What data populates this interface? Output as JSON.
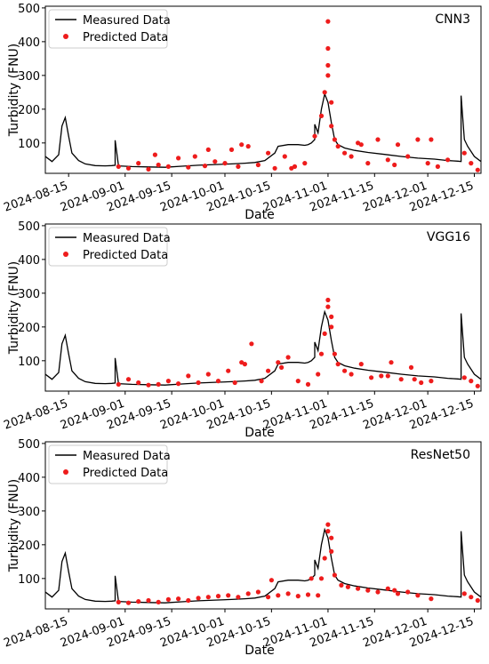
{
  "chart_data": [
    {
      "type": "line",
      "title": "CNN3",
      "xlabel": "Date",
      "ylabel": "Turbidity (FNU)",
      "ylim": [
        10,
        505
      ],
      "yticks": [
        100,
        200,
        300,
        400,
        500
      ],
      "xlim": [
        "2024-08-08",
        "2024-12-17"
      ],
      "xticks": [
        "2024-08-15",
        "2024-09-01",
        "2024-09-15",
        "2024-10-01",
        "2024-10-15",
        "2024-11-01",
        "2024-11-15",
        "2024-12-01",
        "2024-12-15"
      ],
      "legend": {
        "position": "top-left",
        "entries": [
          "Measured Data",
          "Predicted Data"
        ]
      },
      "series": [
        {
          "name": "Measured Data",
          "kind": "line",
          "color": "#000000",
          "x": [
            "2024-08-08",
            "2024-08-10",
            "2024-08-12",
            "2024-08-13",
            "2024-08-14",
            "2024-08-15",
            "2024-08-16",
            "2024-08-18",
            "2024-08-20",
            "2024-08-23",
            "2024-08-26",
            "2024-08-28",
            "2024-08-29",
            "2024-08-29",
            "2024-08-30",
            "2024-09-03",
            "2024-09-08",
            "2024-09-13",
            "2024-09-18",
            "2024-09-23",
            "2024-09-28",
            "2024-10-03",
            "2024-10-07",
            "2024-10-10",
            "2024-10-13",
            "2024-10-16",
            "2024-10-17",
            "2024-10-20",
            "2024-10-23",
            "2024-10-25",
            "2024-10-26",
            "2024-10-27",
            "2024-10-28",
            "2024-10-28",
            "2024-10-29",
            "2024-10-30",
            "2024-10-31",
            "2024-11-01",
            "2024-11-02",
            "2024-11-03",
            "2024-11-04",
            "2024-11-06",
            "2024-11-09",
            "2024-11-13",
            "2024-11-18",
            "2024-11-23",
            "2024-11-28",
            "2024-12-03",
            "2024-12-07",
            "2024-12-10",
            "2024-12-11",
            "2024-12-11",
            "2024-12-12",
            "2024-12-13",
            "2024-12-15",
            "2024-12-17"
          ],
          "y": [
            60,
            45,
            65,
            150,
            175,
            120,
            70,
            48,
            38,
            33,
            32,
            33,
            34,
            108,
            32,
            30,
            29,
            28,
            31,
            34,
            36,
            38,
            40,
            42,
            48,
            70,
            90,
            95,
            95,
            93,
            95,
            100,
            110,
            155,
            130,
            200,
            245,
            220,
            160,
            110,
            95,
            85,
            78,
            72,
            66,
            60,
            55,
            52,
            48,
            46,
            45,
            240,
            110,
            90,
            60,
            45
          ]
        },
        {
          "name": "Predicted Data",
          "kind": "scatter",
          "color": "#ee1c1c",
          "x": [
            "2024-08-30",
            "2024-09-02",
            "2024-09-05",
            "2024-09-08",
            "2024-09-11",
            "2024-09-14",
            "2024-09-17",
            "2024-09-20",
            "2024-09-22",
            "2024-09-25",
            "2024-09-28",
            "2024-10-01",
            "2024-10-03",
            "2024-10-05",
            "2024-10-08",
            "2024-10-11",
            "2024-10-14",
            "2024-10-16",
            "2024-10-19",
            "2024-10-22",
            "2024-10-25",
            "2024-10-28",
            "2024-10-30",
            "2024-10-31",
            "2024-11-01",
            "2024-11-01",
            "2024-11-01",
            "2024-11-01",
            "2024-11-02",
            "2024-11-02",
            "2024-11-03",
            "2024-11-04",
            "2024-11-06",
            "2024-11-08",
            "2024-11-10",
            "2024-11-13",
            "2024-11-16",
            "2024-11-19",
            "2024-11-22",
            "2024-11-25",
            "2024-11-28",
            "2024-12-01",
            "2024-12-04",
            "2024-12-07",
            "2024-12-12",
            "2024-12-14",
            "2024-12-16",
            "2024-09-10",
            "2024-09-26",
            "2024-10-06",
            "2024-10-21",
            "2024-11-11",
            "2024-11-21",
            "2024-12-02"
          ],
          "y": [
            30,
            25,
            40,
            22,
            35,
            30,
            55,
            28,
            60,
            32,
            45,
            40,
            80,
            30,
            90,
            35,
            70,
            25,
            60,
            30,
            40,
            120,
            180,
            250,
            460,
            380,
            330,
            300,
            220,
            150,
            110,
            90,
            70,
            60,
            100,
            40,
            110,
            50,
            95,
            60,
            110,
            40,
            30,
            50,
            70,
            40,
            20,
            65,
            80,
            95,
            25,
            95,
            35,
            110
          ]
        }
      ]
    },
    {
      "type": "line",
      "title": "VGG16",
      "xlabel": "Date",
      "ylabel": "Turbidity (FNU)",
      "ylim": [
        10,
        505
      ],
      "yticks": [
        100,
        200,
        300,
        400,
        500
      ],
      "xlim": [
        "2024-08-08",
        "2024-12-17"
      ],
      "xticks": [
        "2024-08-15",
        "2024-09-01",
        "2024-09-15",
        "2024-10-01",
        "2024-10-15",
        "2024-11-01",
        "2024-11-15",
        "2024-12-01",
        "2024-12-15"
      ],
      "legend": {
        "position": "top-left",
        "entries": [
          "Measured Data",
          "Predicted Data"
        ]
      },
      "series": [
        {
          "name": "Measured Data",
          "kind": "line",
          "color": "#000000",
          "x": [
            "2024-08-08",
            "2024-08-10",
            "2024-08-12",
            "2024-08-13",
            "2024-08-14",
            "2024-08-15",
            "2024-08-16",
            "2024-08-18",
            "2024-08-20",
            "2024-08-23",
            "2024-08-26",
            "2024-08-28",
            "2024-08-29",
            "2024-08-29",
            "2024-08-30",
            "2024-09-03",
            "2024-09-08",
            "2024-09-13",
            "2024-09-18",
            "2024-09-23",
            "2024-09-28",
            "2024-10-03",
            "2024-10-07",
            "2024-10-10",
            "2024-10-13",
            "2024-10-16",
            "2024-10-17",
            "2024-10-20",
            "2024-10-23",
            "2024-10-25",
            "2024-10-26",
            "2024-10-27",
            "2024-10-28",
            "2024-10-28",
            "2024-10-29",
            "2024-10-30",
            "2024-10-31",
            "2024-11-01",
            "2024-11-02",
            "2024-11-03",
            "2024-11-04",
            "2024-11-06",
            "2024-11-09",
            "2024-11-13",
            "2024-11-18",
            "2024-11-23",
            "2024-11-28",
            "2024-12-03",
            "2024-12-07",
            "2024-12-10",
            "2024-12-11",
            "2024-12-11",
            "2024-12-12",
            "2024-12-13",
            "2024-12-15",
            "2024-12-17"
          ],
          "y": [
            60,
            45,
            65,
            150,
            175,
            120,
            70,
            48,
            38,
            33,
            32,
            33,
            34,
            108,
            32,
            30,
            29,
            28,
            31,
            34,
            36,
            38,
            40,
            42,
            48,
            70,
            90,
            95,
            95,
            93,
            95,
            100,
            110,
            155,
            130,
            200,
            245,
            220,
            160,
            110,
            95,
            85,
            78,
            72,
            66,
            60,
            55,
            52,
            48,
            46,
            45,
            240,
            110,
            90,
            60,
            45
          ]
        },
        {
          "name": "Predicted Data",
          "kind": "scatter",
          "color": "#ee1c1c",
          "x": [
            "2024-08-30",
            "2024-09-02",
            "2024-09-05",
            "2024-09-08",
            "2024-09-11",
            "2024-09-14",
            "2024-09-17",
            "2024-09-20",
            "2024-09-23",
            "2024-09-26",
            "2024-09-29",
            "2024-10-02",
            "2024-10-04",
            "2024-10-06",
            "2024-10-09",
            "2024-10-12",
            "2024-10-14",
            "2024-10-17",
            "2024-10-20",
            "2024-10-23",
            "2024-10-26",
            "2024-10-29",
            "2024-10-30",
            "2024-10-31",
            "2024-11-01",
            "2024-11-01",
            "2024-11-02",
            "2024-11-02",
            "2024-11-03",
            "2024-11-04",
            "2024-11-06",
            "2024-11-08",
            "2024-11-11",
            "2024-11-14",
            "2024-11-17",
            "2024-11-20",
            "2024-11-23",
            "2024-11-26",
            "2024-11-29",
            "2024-12-02",
            "2024-12-12",
            "2024-12-14",
            "2024-12-16",
            "2024-10-07",
            "2024-10-18",
            "2024-11-19",
            "2024-11-27"
          ],
          "y": [
            30,
            45,
            35,
            28,
            30,
            40,
            32,
            55,
            35,
            60,
            40,
            70,
            35,
            95,
            150,
            40,
            70,
            95,
            110,
            40,
            30,
            60,
            120,
            180,
            280,
            260,
            230,
            200,
            120,
            90,
            70,
            60,
            90,
            50,
            55,
            95,
            45,
            80,
            35,
            40,
            50,
            40,
            25,
            90,
            80,
            55,
            45
          ]
        }
      ]
    },
    {
      "type": "line",
      "title": "ResNet50",
      "xlabel": "Date",
      "ylabel": "Turbidity (FNU)",
      "ylim": [
        10,
        505
      ],
      "yticks": [
        100,
        200,
        300,
        400,
        500
      ],
      "xlim": [
        "2024-08-08",
        "2024-12-17"
      ],
      "xticks": [
        "2024-08-15",
        "2024-09-01",
        "2024-09-15",
        "2024-10-01",
        "2024-10-15",
        "2024-11-01",
        "2024-11-15",
        "2024-12-01",
        "2024-12-15"
      ],
      "legend": {
        "position": "top-left",
        "entries": [
          "Measured Data",
          "Predicted Data"
        ]
      },
      "series": [
        {
          "name": "Measured Data",
          "kind": "line",
          "color": "#000000",
          "x": [
            "2024-08-08",
            "2024-08-10",
            "2024-08-12",
            "2024-08-13",
            "2024-08-14",
            "2024-08-15",
            "2024-08-16",
            "2024-08-18",
            "2024-08-20",
            "2024-08-23",
            "2024-08-26",
            "2024-08-28",
            "2024-08-29",
            "2024-08-29",
            "2024-08-30",
            "2024-09-03",
            "2024-09-08",
            "2024-09-13",
            "2024-09-18",
            "2024-09-23",
            "2024-09-28",
            "2024-10-03",
            "2024-10-07",
            "2024-10-10",
            "2024-10-13",
            "2024-10-16",
            "2024-10-17",
            "2024-10-20",
            "2024-10-23",
            "2024-10-25",
            "2024-10-26",
            "2024-10-27",
            "2024-10-28",
            "2024-10-28",
            "2024-10-29",
            "2024-10-30",
            "2024-10-31",
            "2024-11-01",
            "2024-11-02",
            "2024-11-03",
            "2024-11-04",
            "2024-11-06",
            "2024-11-09",
            "2024-11-13",
            "2024-11-18",
            "2024-11-23",
            "2024-11-28",
            "2024-12-03",
            "2024-12-07",
            "2024-12-10",
            "2024-12-11",
            "2024-12-11",
            "2024-12-12",
            "2024-12-13",
            "2024-12-15",
            "2024-12-17"
          ],
          "y": [
            60,
            45,
            65,
            150,
            175,
            120,
            70,
            48,
            38,
            33,
            32,
            33,
            34,
            108,
            32,
            30,
            29,
            28,
            31,
            34,
            36,
            38,
            40,
            42,
            48,
            70,
            90,
            95,
            95,
            93,
            95,
            100,
            110,
            155,
            130,
            200,
            245,
            220,
            160,
            110,
            95,
            85,
            78,
            72,
            66,
            60,
            55,
            52,
            48,
            46,
            45,
            240,
            110,
            90,
            60,
            45
          ]
        },
        {
          "name": "Predicted Data",
          "kind": "scatter",
          "color": "#ee1c1c",
          "x": [
            "2024-08-30",
            "2024-09-02",
            "2024-09-05",
            "2024-09-08",
            "2024-09-11",
            "2024-09-14",
            "2024-09-17",
            "2024-09-20",
            "2024-09-23",
            "2024-09-26",
            "2024-09-29",
            "2024-10-02",
            "2024-10-05",
            "2024-10-08",
            "2024-10-11",
            "2024-10-14",
            "2024-10-17",
            "2024-10-20",
            "2024-10-23",
            "2024-10-26",
            "2024-10-29",
            "2024-10-30",
            "2024-10-31",
            "2024-11-01",
            "2024-11-01",
            "2024-11-02",
            "2024-11-02",
            "2024-11-03",
            "2024-11-05",
            "2024-11-07",
            "2024-11-10",
            "2024-11-13",
            "2024-11-16",
            "2024-11-19",
            "2024-11-22",
            "2024-11-25",
            "2024-11-28",
            "2024-12-02",
            "2024-12-12",
            "2024-12-14",
            "2024-12-16",
            "2024-10-15",
            "2024-10-27",
            "2024-11-21"
          ],
          "y": [
            30,
            28,
            32,
            35,
            30,
            38,
            40,
            35,
            42,
            45,
            48,
            50,
            45,
            55,
            60,
            45,
            50,
            55,
            48,
            52,
            50,
            100,
            160,
            240,
            260,
            220,
            180,
            110,
            80,
            75,
            70,
            65,
            60,
            70,
            55,
            60,
            50,
            40,
            55,
            45,
            35,
            95,
            100,
            65
          ]
        }
      ]
    }
  ]
}
